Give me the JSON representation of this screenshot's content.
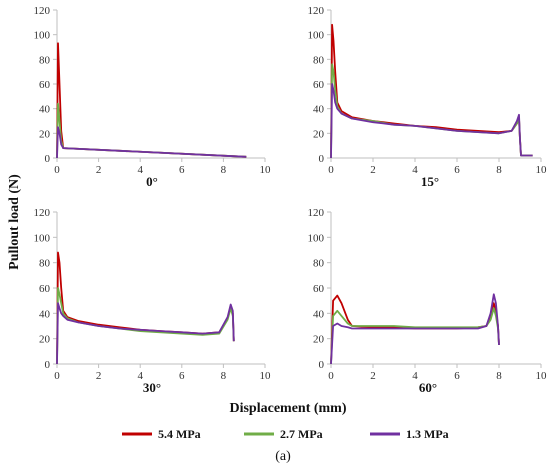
{
  "figure": {
    "y_label": "Pullout load (N)",
    "x_label": "Displacement (mm)",
    "caption": "(a)"
  },
  "legend": [
    {
      "name": "5.4 MPa",
      "color": "#c00000"
    },
    {
      "name": "2.7 MPa",
      "color": "#70ad47"
    },
    {
      "name": "1.3 MPa",
      "color": "#7030a0"
    }
  ],
  "chart_data": [
    {
      "type": "line",
      "annotation": "0°",
      "xlim": [
        0,
        10
      ],
      "ylim": [
        0,
        120
      ],
      "xticks": [
        0,
        2,
        4,
        6,
        8,
        10
      ],
      "yticks": [
        0,
        20,
        40,
        60,
        80,
        100,
        120
      ],
      "grid": false,
      "series": [
        {
          "name": "5.4 MPa",
          "x": [
            0.0,
            0.05,
            0.12,
            0.2,
            0.3,
            9.1
          ],
          "y": [
            0,
            93,
            60,
            22,
            8,
            1
          ]
        },
        {
          "name": "2.7 MPa",
          "x": [
            0.0,
            0.05,
            0.12,
            0.2,
            0.3,
            9.1
          ],
          "y": [
            0,
            44,
            30,
            14,
            8,
            1
          ]
        },
        {
          "name": "1.3 MPa",
          "x": [
            0.0,
            0.05,
            0.12,
            0.2,
            0.3,
            9.1
          ],
          "y": [
            0,
            25,
            20,
            11,
            8,
            1
          ]
        }
      ]
    },
    {
      "type": "line",
      "annotation": "15°",
      "xlim": [
        0,
        10
      ],
      "ylim": [
        0,
        120
      ],
      "xticks": [
        0,
        2,
        4,
        6,
        8,
        10
      ],
      "yticks": [
        0,
        20,
        40,
        60,
        80,
        100,
        120
      ],
      "grid": false,
      "series": [
        {
          "name": "5.4 MPa",
          "x": [
            0.0,
            0.05,
            0.12,
            0.2,
            0.3,
            0.5,
            1.0,
            2.0,
            3.0,
            4.0,
            5.0,
            6.0,
            7.0,
            8.0,
            8.6,
            8.85,
            8.95,
            9.0,
            9.05,
            9.6
          ],
          "y": [
            0,
            108,
            95,
            70,
            45,
            38,
            33,
            30,
            28,
            26,
            25,
            23,
            22,
            21,
            22,
            28,
            32,
            15,
            2,
            2
          ]
        },
        {
          "name": "2.7 MPa",
          "x": [
            0.0,
            0.05,
            0.12,
            0.2,
            0.3,
            0.5,
            1.0,
            2.0,
            3.0,
            4.0,
            5.0,
            6.0,
            7.0,
            8.0,
            8.6,
            8.85,
            8.95,
            9.0,
            9.05,
            9.6
          ],
          "y": [
            0,
            76,
            70,
            55,
            42,
            36,
            32,
            30,
            27,
            26,
            24,
            22,
            21,
            20,
            22,
            28,
            32,
            15,
            2,
            2
          ]
        },
        {
          "name": "1.3 MPa",
          "x": [
            0.0,
            0.05,
            0.12,
            0.2,
            0.3,
            0.5,
            1.0,
            2.0,
            3.0,
            4.0,
            5.0,
            6.0,
            7.0,
            8.0,
            8.6,
            8.85,
            8.95,
            9.0,
            9.05,
            9.6
          ],
          "y": [
            0,
            60,
            55,
            45,
            40,
            36,
            32,
            29,
            27,
            26,
            24,
            22,
            21,
            20,
            22,
            30,
            35,
            15,
            2,
            2
          ]
        }
      ]
    },
    {
      "type": "line",
      "annotation": "30°",
      "xlim": [
        0,
        10
      ],
      "ylim": [
        0,
        120
      ],
      "xticks": [
        0,
        2,
        4,
        6,
        8,
        10
      ],
      "yticks": [
        0,
        20,
        40,
        60,
        80,
        100,
        120
      ],
      "grid": false,
      "series": [
        {
          "name": "5.4 MPa",
          "x": [
            0.0,
            0.05,
            0.12,
            0.2,
            0.3,
            0.5,
            1.0,
            2.0,
            3.0,
            4.0,
            5.0,
            6.0,
            7.0,
            7.8,
            8.2,
            8.35,
            8.45,
            8.5
          ],
          "y": [
            0,
            88,
            80,
            60,
            42,
            37,
            34,
            31,
            29,
            27,
            26,
            25,
            24,
            25,
            36,
            45,
            40,
            18
          ]
        },
        {
          "name": "2.7 MPa",
          "x": [
            0.0,
            0.05,
            0.12,
            0.2,
            0.3,
            0.5,
            1.0,
            2.0,
            3.0,
            4.0,
            5.0,
            6.0,
            7.0,
            7.8,
            8.2,
            8.35,
            8.45,
            8.5
          ],
          "y": [
            0,
            60,
            55,
            48,
            40,
            36,
            33,
            30,
            28,
            26,
            25,
            24,
            23,
            24,
            35,
            44,
            38,
            18
          ]
        },
        {
          "name": "1.3 MPa",
          "x": [
            0.0,
            0.05,
            0.12,
            0.2,
            0.3,
            0.5,
            1.0,
            2.0,
            3.0,
            4.0,
            5.0,
            6.0,
            7.0,
            7.8,
            8.2,
            8.35,
            8.45,
            8.5
          ],
          "y": [
            0,
            48,
            44,
            40,
            38,
            35,
            33,
            30,
            28,
            27,
            26,
            25,
            24,
            25,
            37,
            47,
            42,
            18
          ]
        }
      ]
    },
    {
      "type": "line",
      "annotation": "60°",
      "xlim": [
        0,
        10
      ],
      "ylim": [
        0,
        120
      ],
      "xticks": [
        0,
        2,
        4,
        6,
        8,
        10
      ],
      "yticks": [
        0,
        20,
        40,
        60,
        80,
        100,
        120
      ],
      "grid": false,
      "series": [
        {
          "name": "5.4 MPa",
          "x": [
            0.0,
            0.1,
            0.3,
            0.5,
            0.8,
            1.0,
            2.0,
            3.0,
            4.0,
            5.0,
            6.0,
            7.0,
            7.4,
            7.6,
            7.75,
            7.85,
            7.95,
            8.0
          ],
          "y": [
            0,
            50,
            54,
            48,
            35,
            30,
            29,
            29,
            28,
            28,
            28,
            29,
            30,
            38,
            48,
            42,
            30,
            15
          ]
        },
        {
          "name": "2.7 MPa",
          "x": [
            0.0,
            0.1,
            0.3,
            0.5,
            0.8,
            1.0,
            2.0,
            3.0,
            4.0,
            5.0,
            6.0,
            7.0,
            7.4,
            7.6,
            7.75,
            7.85,
            7.95,
            8.0
          ],
          "y": [
            0,
            38,
            42,
            38,
            32,
            30,
            30,
            30,
            29,
            29,
            29,
            29,
            30,
            35,
            44,
            38,
            28,
            15
          ]
        },
        {
          "name": "1.3 MPa",
          "x": [
            0.0,
            0.1,
            0.3,
            0.5,
            0.8,
            1.0,
            2.0,
            3.0,
            4.0,
            5.0,
            6.0,
            7.0,
            7.4,
            7.6,
            7.75,
            7.85,
            7.95,
            8.0
          ],
          "y": [
            0,
            30,
            32,
            30,
            29,
            28,
            28,
            28,
            28,
            28,
            28,
            28,
            30,
            40,
            55,
            48,
            30,
            15
          ]
        }
      ]
    }
  ]
}
